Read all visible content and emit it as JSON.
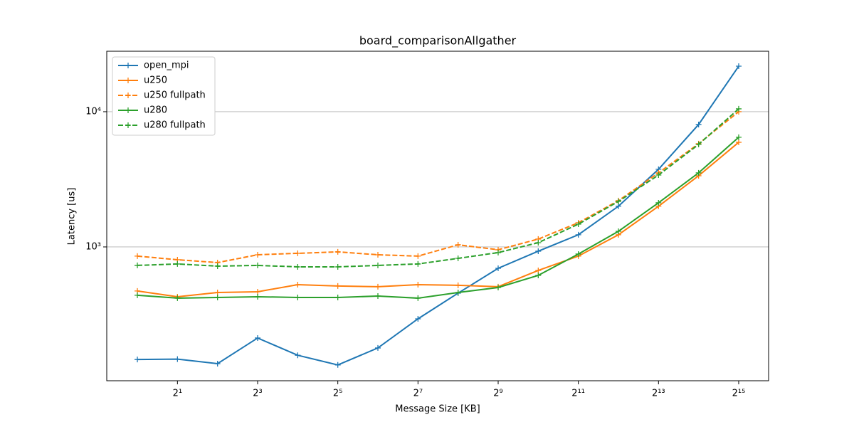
{
  "chart_data": {
    "type": "line",
    "title": "board_comparisonAllgather",
    "x_label": "Message Size [KB]",
    "y_label": "Latency [us]",
    "x_scale": "log",
    "y_scale": "log",
    "grid": "y",
    "legend_position": "upper left",
    "x": [
      1,
      2,
      4,
      8,
      16,
      32,
      64,
      128,
      256,
      512,
      1024,
      2048,
      4096,
      8192,
      16384,
      32768
    ],
    "xlim": [
      0.589,
      54960
    ],
    "ylim": [
      102.4,
      28000
    ],
    "xticks": [
      {
        "value": 2,
        "label": "2¹"
      },
      {
        "value": 8,
        "label": "2³"
      },
      {
        "value": 32,
        "label": "2⁵"
      },
      {
        "value": 128,
        "label": "2⁷"
      },
      {
        "value": 512,
        "label": "2⁹"
      },
      {
        "value": 2048,
        "label": "2¹¹"
      },
      {
        "value": 8192,
        "label": "2¹³"
      },
      {
        "value": 32768,
        "label": "2¹⁵"
      }
    ],
    "yticks": [
      {
        "value": 1000,
        "label": "10³"
      },
      {
        "value": 10000,
        "label": "10⁴"
      }
    ],
    "series": [
      {
        "name": "open_mpi",
        "color": "#1f77b4",
        "linestyle": "solid",
        "values": [
          147,
          148,
          137,
          212,
          158,
          134,
          179,
          294,
          455,
          695,
          930,
          1230,
          2000,
          3750,
          8040,
          21700
        ]
      },
      {
        "name": "u250",
        "color": "#ff7f0e",
        "linestyle": "solid",
        "values": [
          472,
          428,
          460,
          466,
          526,
          514,
          508,
          526,
          520,
          508,
          670,
          855,
          1230,
          2000,
          3360,
          5940
        ]
      },
      {
        "name": "u250 fullpath",
        "color": "#ff7f0e",
        "linestyle": "dashed",
        "values": [
          855,
          804,
          766,
          875,
          897,
          919,
          875,
          855,
          1037,
          953,
          1143,
          1510,
          2200,
          3530,
          5800,
          10000
        ]
      },
      {
        "name": "u280",
        "color": "#2ca02c",
        "linestyle": "solid",
        "values": [
          439,
          418,
          423,
          428,
          423,
          423,
          433,
          418,
          460,
          501,
          616,
          886,
          1305,
          2120,
          3530,
          6470
        ]
      },
      {
        "name": "u280 fullpath",
        "color": "#2ca02c",
        "linestyle": "dashed",
        "values": [
          730,
          748,
          721,
          730,
          712,
          712,
          730,
          748,
          823,
          908,
          1075,
          1473,
          2170,
          3400,
          5730,
          10500
        ]
      }
    ]
  }
}
